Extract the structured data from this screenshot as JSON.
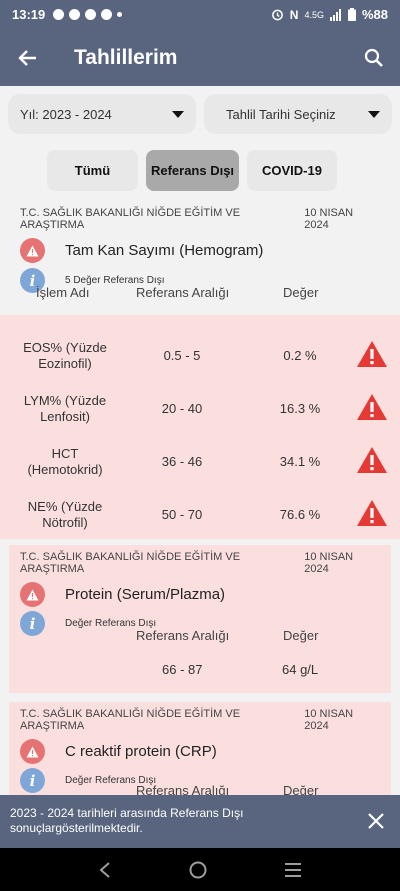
{
  "status_bar": {
    "time": "13:19",
    "network": "4.5G",
    "battery": "%88"
  },
  "app_bar": {
    "title": "Tahlillerim",
    "back_icon": "arrow-left-icon",
    "search_icon": "search-icon"
  },
  "filters": {
    "year_select": "Yıl: 2023 - 2024",
    "date_select": "Tahlil Tarihi Seçiniz"
  },
  "tabs": [
    {
      "label": "Tümü",
      "selected": false
    },
    {
      "label": "Referans Dışı",
      "selected": true
    },
    {
      "label": "COVID-19",
      "selected": false
    }
  ],
  "results": [
    {
      "hospital": "T.C. SAĞLIK BAKANLIĞI NİĞDE EĞİTİM VE ARAŞTIRMA",
      "date": "10 NISAN 2024",
      "test_name": "Tam Kan Sayımı (Hemogram)",
      "info": "5 Değer Referans Dışı",
      "columns": {
        "name": "İşlem Adı",
        "range": "Referans Aralığı",
        "value": "Değer"
      },
      "rows": [
        {
          "name": "EOS% (Yüzde Eozinofil)",
          "range": "0.5 - 5",
          "value": "0.2 %"
        },
        {
          "name": "LYM% (Yüzde Lenfosit)",
          "range": "20 - 40",
          "value": "16.3 %"
        },
        {
          "name": "HCT (Hemotokrid)",
          "range": "36 - 46",
          "value": "34.1 %"
        },
        {
          "name": "NE% (Yüzde Nötrofil)",
          "range": "50 - 70",
          "value": "76.6 %"
        }
      ]
    },
    {
      "hospital": "T.C. SAĞLIK BAKANLIĞI NİĞDE EĞİTİM VE ARAŞTIRMA",
      "date": "10 NISAN 2024",
      "test_name": "Protein (Serum/Plazma)",
      "info": "Değer Referans Dışı",
      "columns": {
        "range": "Referans Aralığı",
        "value": "Değer"
      },
      "range": "66 - 87",
      "value": "64 g/L"
    },
    {
      "hospital": "T.C. SAĞLIK BAKANLIĞI NİĞDE EĞİTİM VE ARAŞTIRMA",
      "date": "10 NISAN 2024",
      "test_name": "C reaktif protein (CRP)",
      "info": "Değer Referans Dışı",
      "columns": {
        "range": "Referans Aralığı",
        "value": "Değer"
      }
    }
  ],
  "snackbar": {
    "message": "2023 - 2024 tarihleri arasında Referans Dışı sonuçlargösterilmektedir."
  },
  "colors": {
    "header": "#59657e",
    "out_of_range_bg": "#fbdfdf",
    "alert_red": "#e53935",
    "info_blue": "#7ea7d8"
  }
}
